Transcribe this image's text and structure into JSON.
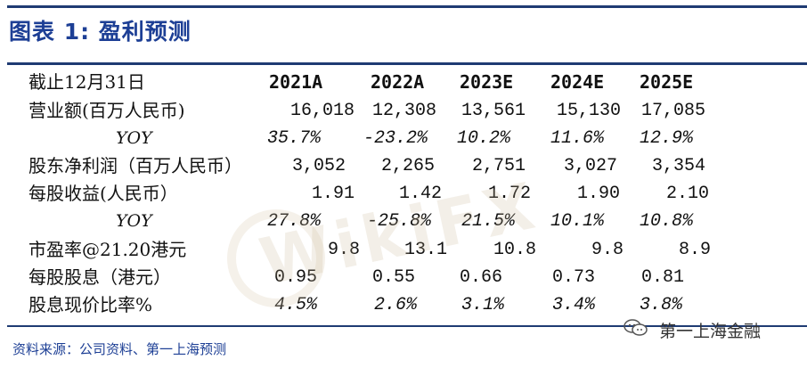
{
  "title": "图表 1:  盈利预测",
  "table": {
    "header": {
      "label": "截止12月31日",
      "years": [
        "2021A",
        "2022A",
        "2023E",
        "2024E",
        "2025E"
      ]
    },
    "rows": [
      {
        "label": "营业额(百万人民币)",
        "values": [
          "16,018",
          "12,308",
          "13,561",
          "15,130",
          "17,085"
        ]
      },
      {
        "label": "YOY",
        "values": [
          "35.7%",
          "-23.2%",
          "10.2%",
          "11.6%",
          "12.9%"
        ]
      },
      {
        "label": "股东净利润（百万人民币）",
        "values": [
          "3,052",
          "2,265",
          "2,751",
          "3,027",
          "3,354"
        ]
      },
      {
        "label": "每股收益(人民币）",
        "values": [
          "1.91",
          "1.42",
          "1.72",
          "1.90",
          "2.10"
        ]
      },
      {
        "label": "YOY",
        "values": [
          "27.8%",
          "-25.8%",
          "21.5%",
          "10.1%",
          "10.8%"
        ]
      },
      {
        "label": "市盈率@21.20港元",
        "values": [
          "9.8",
          "13.1",
          "10.8",
          "9.8",
          "8.9"
        ]
      },
      {
        "label": "每股股息（港元）",
        "values": [
          "0.95",
          "0.55",
          "0.66",
          "0.73",
          "0.81"
        ]
      },
      {
        "label": "股息现价比率%",
        "values": [
          "4.5%",
          "2.6%",
          "3.1%",
          "3.4%",
          "3.8%"
        ]
      }
    ]
  },
  "source": "资料来源：公司资料、第一上海预测",
  "brand": "第一上海金融",
  "watermark": "WikiFX",
  "icons": {
    "brand": "wechat-icon"
  },
  "colors": {
    "accent": "#1d3f95",
    "rule": "#1f3b73"
  }
}
